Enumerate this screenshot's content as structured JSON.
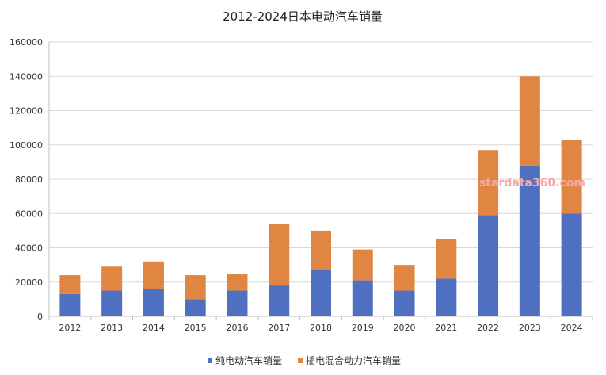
{
  "chart_data": {
    "type": "bar",
    "stacked": true,
    "title": "2012-2024日本电动汽车销量",
    "categories": [
      "2012",
      "2013",
      "2014",
      "2015",
      "2016",
      "2017",
      "2018",
      "2019",
      "2020",
      "2021",
      "2022",
      "2023",
      "2024"
    ],
    "series": [
      {
        "name": "纯电动汽车销量",
        "color": "#4f6fc0",
        "values": [
          13000,
          15000,
          16000,
          10000,
          15000,
          18000,
          27000,
          21000,
          15000,
          22000,
          59000,
          88000,
          60000
        ]
      },
      {
        "name": "插电混合动力汽车销量",
        "color": "#e08642",
        "values": [
          11000,
          14000,
          16000,
          14000,
          9500,
          36000,
          23000,
          18000,
          15000,
          23000,
          38000,
          52000,
          43000
        ]
      }
    ],
    "ylim": [
      0,
      160000
    ],
    "yticks": [
      "0",
      "20000",
      "40000",
      "60000",
      "80000",
      "100000",
      "120000",
      "140000",
      "160000"
    ],
    "grid": true,
    "legend_position": "bottom-center",
    "watermark": "stardata360.com"
  }
}
